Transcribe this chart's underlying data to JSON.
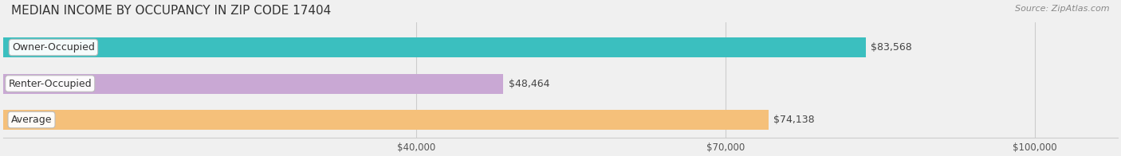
{
  "title": "MEDIAN INCOME BY OCCUPANCY IN ZIP CODE 17404",
  "source": "Source: ZipAtlas.com",
  "categories": [
    "Owner-Occupied",
    "Renter-Occupied",
    "Average"
  ],
  "values": [
    83568,
    48464,
    74138
  ],
  "labels": [
    "$83,568",
    "$48,464",
    "$74,138"
  ],
  "bar_colors": [
    "#3bbfbf",
    "#c9a8d4",
    "#f5c07a"
  ],
  "bar_edge_colors": [
    "#2aa0a0",
    "#b090bf",
    "#e0a860"
  ],
  "background_color": "#f0f0f0",
  "bar_bg_color": "#e8e8e8",
  "label_bg_color": "#ffffff",
  "xmin": 0,
  "xmax": 100000,
  "xticks": [
    40000,
    70000,
    100000
  ],
  "xtick_labels": [
    "$40,000",
    "$70,000",
    "$100,000"
  ],
  "title_fontsize": 11,
  "source_fontsize": 8,
  "label_fontsize": 9,
  "category_fontsize": 9
}
